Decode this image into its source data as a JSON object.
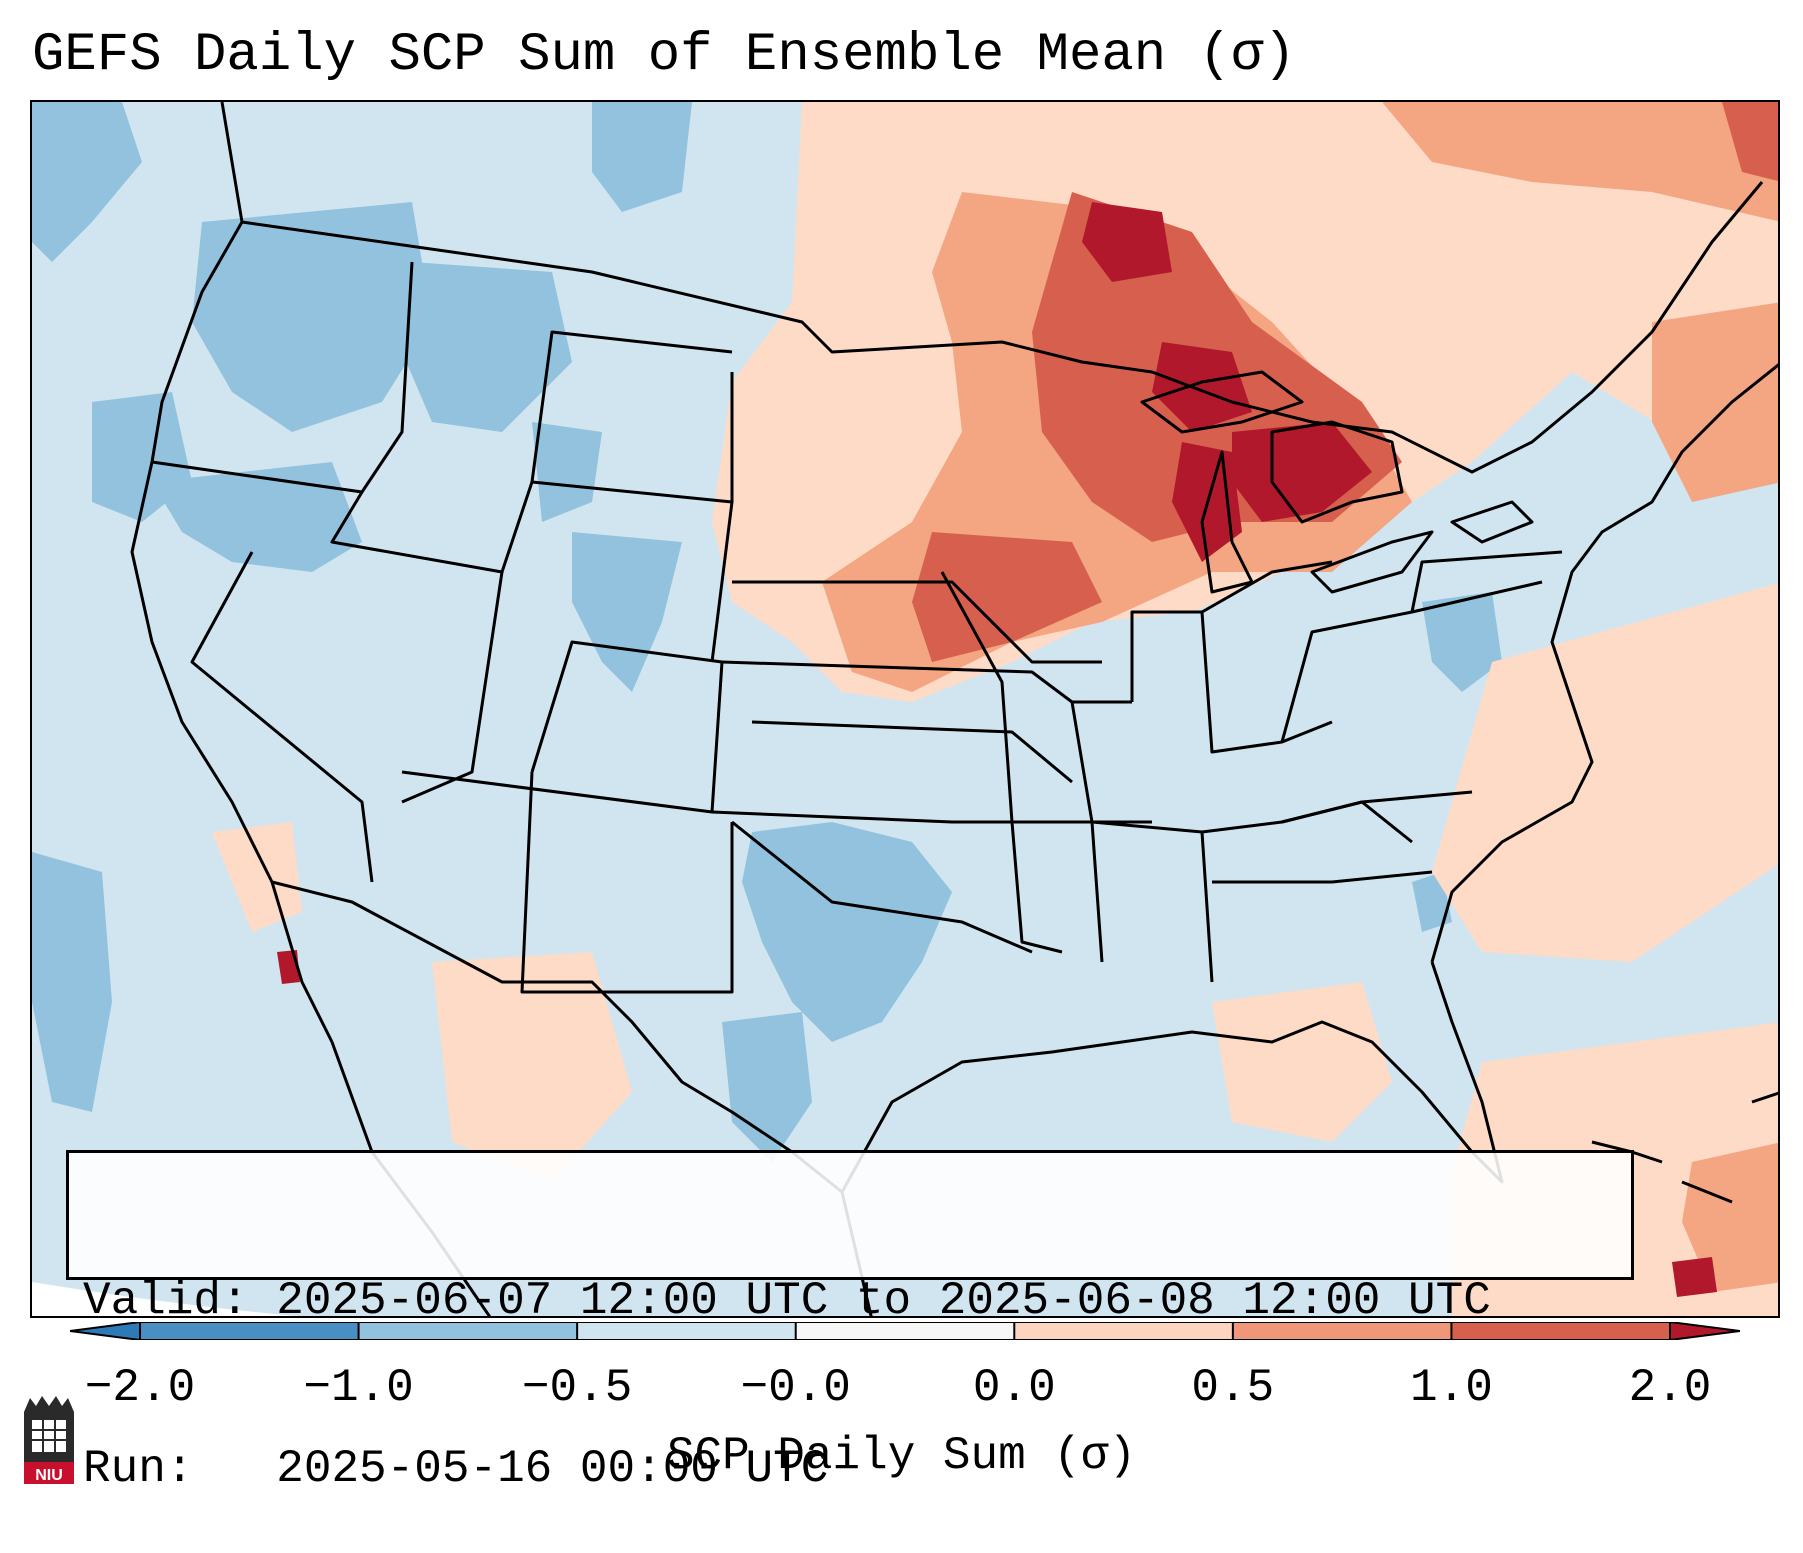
{
  "title": "GEFS Daily SCP Sum of Ensemble Mean (σ)",
  "info": {
    "valid_line": "Valid: 2025-06-07 12:00 UTC to 2025-06-08 12:00 UTC",
    "run_line": "Run:   2025-05-16 00:00 UTC"
  },
  "colorbar": {
    "label": "SCP Daily Sum (σ)",
    "ticks": [
      "−2.0",
      "−1.0",
      "−0.5",
      "−0.0",
      "0.0",
      "0.5",
      "1.0",
      "2.0"
    ],
    "colors": [
      "#2c7bb6",
      "#4a8fc4",
      "#92c2dd",
      "#d1e5f0",
      "#f7f7f7",
      "#fdd4c0",
      "#f0977a",
      "#d6604d",
      "#b2182b"
    ]
  },
  "logo_text": "NIU",
  "map": {
    "region": "Contiguous United States",
    "variable": "SCP daily sum anomaly"
  }
}
